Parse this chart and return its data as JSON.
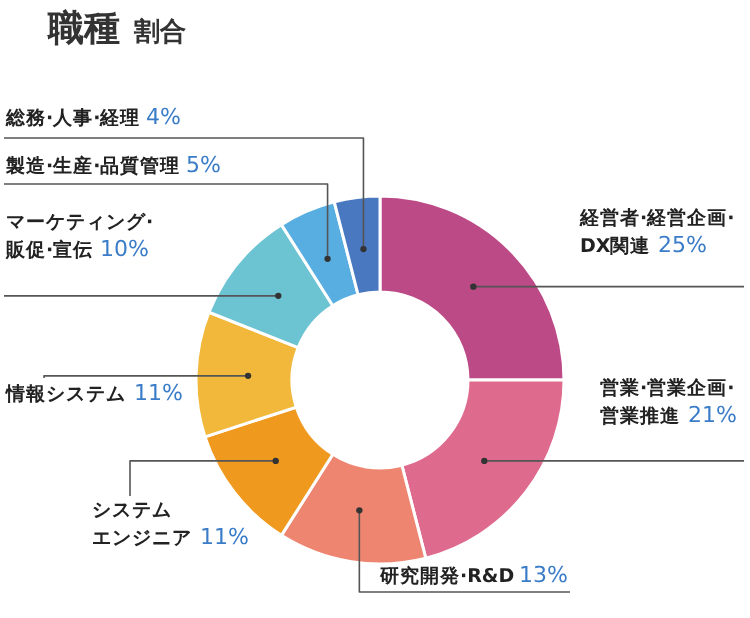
{
  "chart_data": {
    "type": "donut",
    "title": "職種 割合",
    "categories": [
      "経営者·経営企画·DX関連",
      "営業·営業企画·営業推進",
      "研究開発·R&D",
      "システムエンジニア",
      "情報システム",
      "マーケティング·販促·宣伝",
      "製造·生産·品質管理",
      "総務·人事·経理"
    ],
    "values": [
      25,
      21,
      13,
      11,
      11,
      10,
      5,
      4
    ],
    "value_labels": [
      "25%",
      "21%",
      "13%",
      "11%",
      "11%",
      "10%",
      "5%",
      "4%"
    ],
    "colors": [
      "#bb4a86",
      "#de6a8e",
      "#ee8570",
      "#f0991f",
      "#f1b83c",
      "#6cc3d2",
      "#58aee0",
      "#4a78c0"
    ]
  }
}
